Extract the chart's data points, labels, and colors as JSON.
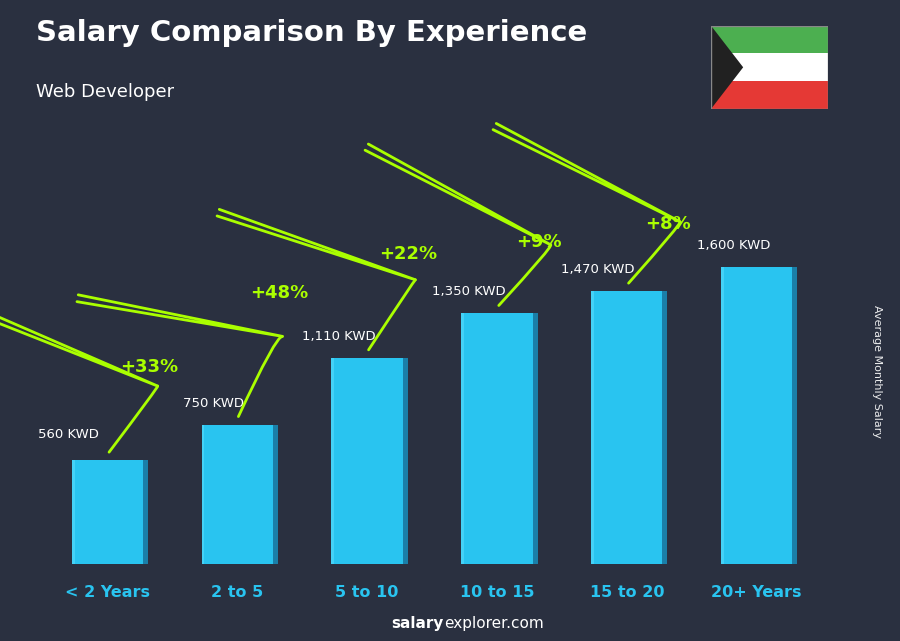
{
  "title": "Salary Comparison By Experience",
  "subtitle": "Web Developer",
  "ylabel": "Average Monthly Salary",
  "watermark_bold": "salary",
  "watermark_normal": "explorer.com",
  "categories": [
    "< 2 Years",
    "2 to 5",
    "5 to 10",
    "10 to 15",
    "15 to 20",
    "20+ Years"
  ],
  "values": [
    560,
    750,
    1110,
    1350,
    1470,
    1600
  ],
  "value_labels": [
    "560 KWD",
    "750 KWD",
    "1,110 KWD",
    "1,350 KWD",
    "1,470 KWD",
    "1,600 KWD"
  ],
  "pct_changes": [
    "+33%",
    "+48%",
    "+22%",
    "+9%",
    "+8%"
  ],
  "bar_face_color": "#29c4f0",
  "bar_right_color": "#1a7fa8",
  "bar_top_color": "#5dd8f8",
  "background_color": "#2a3040",
  "title_color": "#ffffff",
  "subtitle_color": "#ffffff",
  "pct_color": "#aaff00",
  "xlabel_color": "#29c4f0",
  "value_label_color": "#ffffff",
  "ylabel_color": "#ffffff",
  "ylim": [
    0,
    2000
  ],
  "flag_green": "#4caf50",
  "flag_white": "#ffffff",
  "flag_red": "#e53935",
  "flag_black": "#212121"
}
